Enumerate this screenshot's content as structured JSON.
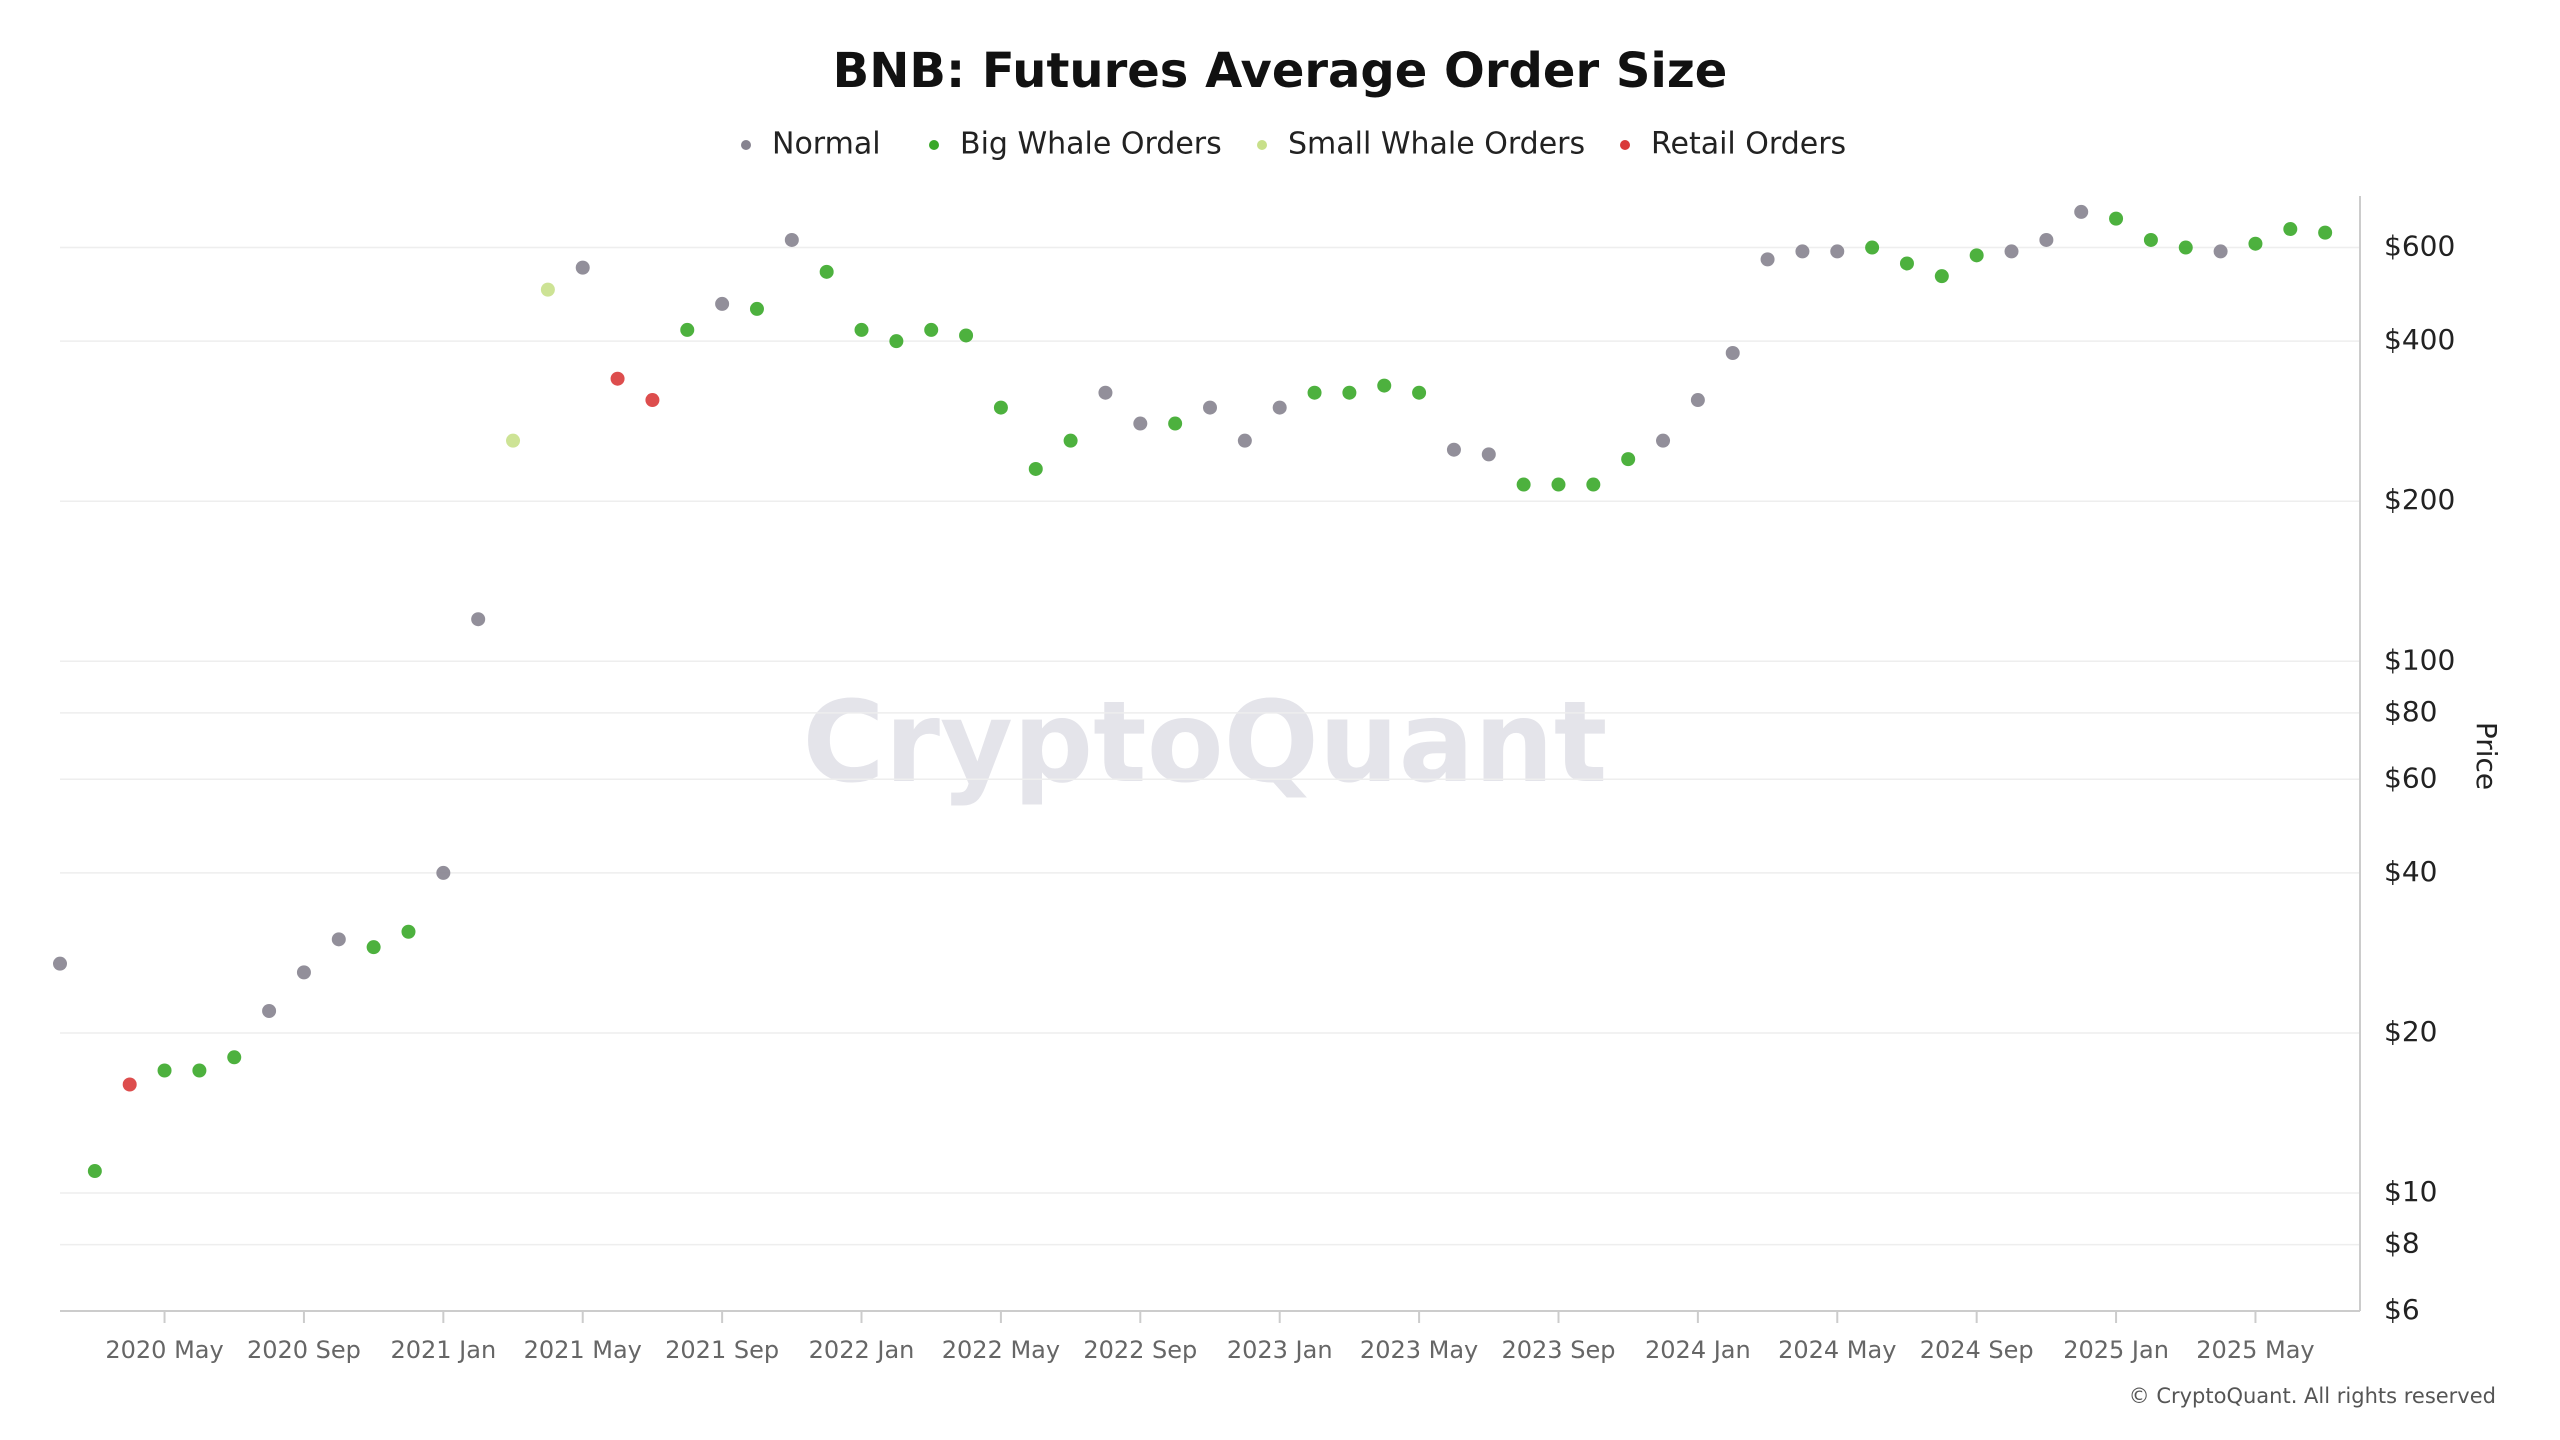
{
  "chart_data": {
    "type": "scatter",
    "title": "BNB: Futures Average Order Size",
    "y_label": "Price",
    "watermark": "CryptoQuant",
    "footer": "© CryptoQuant. All rights reserved",
    "log_scale_y": true,
    "grid": true,
    "legend": "top",
    "xlim": [
      "2020-02",
      "2025-08"
    ],
    "xticks": [
      {
        "value": "2020-05",
        "label": "2020 May"
      },
      {
        "value": "2020-09",
        "label": "2020 Sep"
      },
      {
        "value": "2021-01",
        "label": "2021 Jan"
      },
      {
        "value": "2021-05",
        "label": "2021 May"
      },
      {
        "value": "2021-09",
        "label": "2021 Sep"
      },
      {
        "value": "2022-01",
        "label": "2022 Jan"
      },
      {
        "value": "2022-05",
        "label": "2022 May"
      },
      {
        "value": "2022-09",
        "label": "2022 Sep"
      },
      {
        "value": "2023-01",
        "label": "2023 Jan"
      },
      {
        "value": "2023-05",
        "label": "2023 May"
      },
      {
        "value": "2023-09",
        "label": "2023 Sep"
      },
      {
        "value": "2024-01",
        "label": "2024 Jan"
      },
      {
        "value": "2024-05",
        "label": "2024 May"
      },
      {
        "value": "2024-09",
        "label": "2024 Sep"
      },
      {
        "value": "2025-01",
        "label": "2025 Jan"
      },
      {
        "value": "2025-05",
        "label": "2025 May"
      }
    ],
    "ylim": [
      6,
      750
    ],
    "yticks": [
      {
        "value": 6,
        "label": "$6"
      },
      {
        "value": 8,
        "label": "$8"
      },
      {
        "value": 10,
        "label": "$10"
      },
      {
        "value": 20,
        "label": "$20"
      },
      {
        "value": 40,
        "label": "$40"
      },
      {
        "value": 60,
        "label": "$60"
      },
      {
        "value": 80,
        "label": "$80"
      },
      {
        "value": 100,
        "label": "$100"
      },
      {
        "value": 200,
        "label": "$200"
      },
      {
        "value": 400,
        "label": "$400"
      },
      {
        "value": 600,
        "label": "$600"
      }
    ],
    "series": [
      {
        "name": "Normal",
        "color": "#86838f",
        "x": [
          "2020-02",
          "2020-08",
          "2020-09",
          "2020-10",
          "2021-01",
          "2021-02",
          "2021-05",
          "2021-09",
          "2021-11",
          "2022-08",
          "2022-09",
          "2022-11",
          "2022-12",
          "2023-01",
          "2023-06",
          "2023-07",
          "2023-12",
          "2024-01",
          "2024-02",
          "2024-03",
          "2024-04",
          "2024-05",
          "2024-10",
          "2024-11",
          "2024-12",
          "2025-04"
        ],
        "values": [
          27,
          22,
          26,
          30,
          40,
          120,
          550,
          470,
          620,
          320,
          280,
          300,
          260,
          300,
          250,
          245,
          260,
          310,
          380,
          570,
          590,
          590,
          590,
          620,
          700,
          590
        ]
      },
      {
        "name": "Big Whale Orders",
        "color": "#3aa829",
        "x": [
          "2020-03",
          "2020-05",
          "2020-06",
          "2020-07",
          "2020-11",
          "2020-12",
          "2021-08",
          "2021-10",
          "2021-12",
          "2022-01",
          "2022-02",
          "2022-03",
          "2022-04",
          "2022-05",
          "2022-06",
          "2022-07",
          "2022-10",
          "2023-02",
          "2023-03",
          "2023-04",
          "2023-05",
          "2023-08",
          "2023-09",
          "2023-10",
          "2023-11",
          "2024-06",
          "2024-07",
          "2024-08",
          "2024-09",
          "2025-01",
          "2025-02",
          "2025-03",
          "2025-05",
          "2025-06",
          "2025-07"
        ],
        "values": [
          11,
          17,
          17,
          18,
          29,
          31,
          420,
          460,
          540,
          420,
          400,
          420,
          410,
          300,
          230,
          260,
          280,
          320,
          320,
          330,
          320,
          215,
          215,
          215,
          240,
          600,
          560,
          530,
          580,
          680,
          620,
          600,
          610,
          650,
          640
        ]
      },
      {
        "name": "Small Whale Orders",
        "color": "#c8e08a",
        "x": [
          "2021-03",
          "2021-04"
        ],
        "values": [
          260,
          500
        ]
      },
      {
        "name": "Retail Orders",
        "color": "#d93a3a",
        "x": [
          "2020-04",
          "2021-06",
          "2021-07"
        ],
        "values": [
          16,
          340,
          310
        ]
      }
    ]
  }
}
